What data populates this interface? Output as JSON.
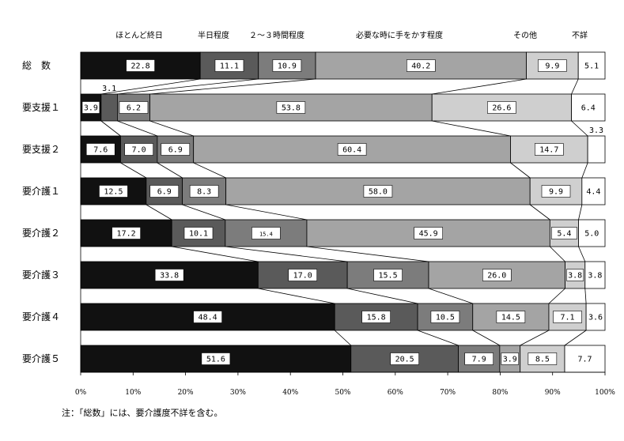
{
  "chart_data": {
    "type": "bar",
    "orientation": "horizontal",
    "stacked": true,
    "percent": true,
    "categories": [
      "総　数",
      "要支援１",
      "要支援２",
      "要介護１",
      "要介護２",
      "要介護３",
      "要介護４",
      "要介護５"
    ],
    "series": [
      {
        "name": "ほとんど終日",
        "color": "#111111",
        "values": [
          22.8,
          3.9,
          7.6,
          12.5,
          17.2,
          33.8,
          48.4,
          51.6
        ]
      },
      {
        "name": "半日程度",
        "color": "#5a5a5a",
        "values": [
          11.1,
          3.1,
          7.0,
          6.9,
          10.1,
          17.0,
          15.8,
          20.5
        ]
      },
      {
        "name": "２～３時間程度",
        "color": "#7c7c7c",
        "values": [
          10.9,
          6.2,
          6.9,
          8.3,
          15.4,
          15.5,
          10.5,
          7.9
        ]
      },
      {
        "name": "必要な時に手をかす程度",
        "color": "#a4a4a4",
        "values": [
          40.2,
          53.8,
          60.4,
          58.0,
          45.9,
          26.0,
          14.5,
          3.9
        ]
      },
      {
        "name": "その他",
        "color": "#cfcfcf",
        "values": [
          9.9,
          26.6,
          14.7,
          9.9,
          5.4,
          3.8,
          7.1,
          8.5
        ]
      },
      {
        "name": "不詳",
        "color": "#ffffff",
        "values": [
          5.1,
          6.4,
          3.3,
          4.4,
          5.0,
          3.8,
          3.6,
          7.7
        ]
      }
    ],
    "xlim": [
      0,
      100
    ],
    "xticks": [
      "0%",
      "10%",
      "20%",
      "30%",
      "40%",
      "50%",
      "60%",
      "70%",
      "80%",
      "90%",
      "100%"
    ],
    "legend_placement": "top",
    "grid": false,
    "note": "注：「総数」には、要介護度不詳を含む。"
  }
}
